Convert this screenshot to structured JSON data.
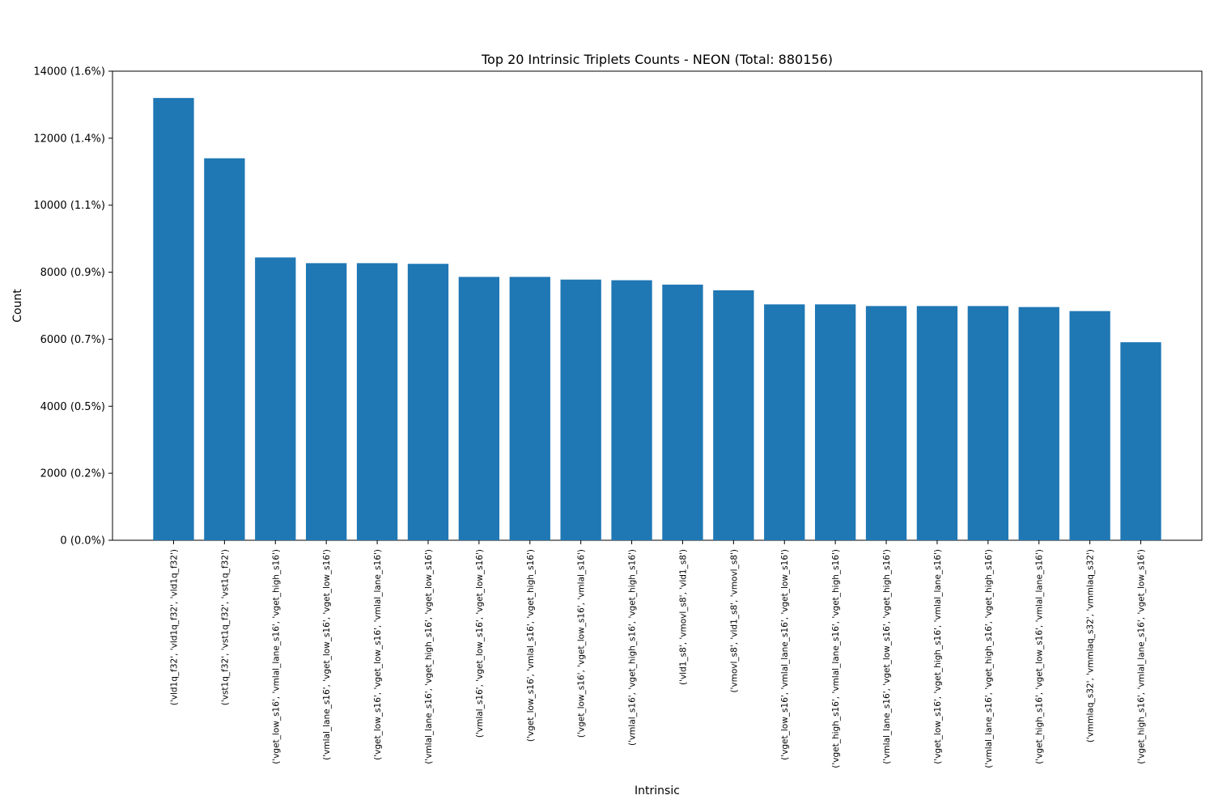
{
  "chart_data": {
    "type": "bar",
    "title": "Top 20 Intrinsic Triplets Counts - NEON (Total: 880156)",
    "xlabel": "Intrinsic",
    "ylabel": "Count",
    "total": 880156,
    "ylim": [
      0,
      14000
    ],
    "yticks": [
      0,
      2000,
      4000,
      6000,
      8000,
      10000,
      12000,
      14000
    ],
    "ytick_labels": [
      "0 (0.0%)",
      "2000 (0.2%)",
      "4000 (0.5%)",
      "6000 (0.7%)",
      "8000 (0.9%)",
      "10000 (1.1%)",
      "12000 (1.4%)",
      "14000 (1.6%)"
    ],
    "grid": false,
    "bar_color": "#1f77b4",
    "categories": [
      "('vld1q_f32', 'vld1q_f32', 'vld1q_f32')",
      "('vst1q_f32', 'vst1q_f32', 'vst1q_f32')",
      "('vget_low_s16', 'vmlal_lane_s16', 'vget_high_s16')",
      "('vmlal_lane_s16', 'vget_low_s16', 'vget_low_s16')",
      "('vget_low_s16', 'vget_low_s16', 'vmlal_lane_s16')",
      "('vmlal_lane_s16', 'vget_high_s16', 'vget_low_s16')",
      "('vmlal_s16', 'vget_low_s16', 'vget_low_s16')",
      "('vget_low_s16', 'vmlal_s16', 'vget_high_s16')",
      "('vget_low_s16', 'vget_low_s16', 'vmlal_s16')",
      "('vmlal_s16', 'vget_high_s16', 'vget_high_s16')",
      "('vld1_s8', 'vmovl_s8', 'vld1_s8')",
      "('vmovl_s8', 'vld1_s8', 'vmovl_s8')",
      "('vget_low_s16', 'vmlal_lane_s16', 'vget_low_s16')",
      "('vget_high_s16', 'vmlal_lane_s16', 'vget_high_s16')",
      "('vmlal_lane_s16', 'vget_low_s16', 'vget_high_s16')",
      "('vget_low_s16', 'vget_high_s16', 'vmlal_lane_s16')",
      "('vmlal_lane_s16', 'vget_high_s16', 'vget_high_s16')",
      "('vget_high_s16', 'vget_low_s16', 'vmlal_lane_s16')",
      "('vmmlaq_s32', 'vmmlaq_s32', 'vmmlaq_s32')",
      "('vget_high_s16', 'vmlal_lane_s16', 'vget_low_s16')"
    ],
    "values": [
      13200,
      11400,
      8440,
      8270,
      8270,
      8250,
      7860,
      7860,
      7780,
      7760,
      7630,
      7460,
      7040,
      7040,
      6990,
      6990,
      6990,
      6960,
      6840,
      5910
    ]
  }
}
